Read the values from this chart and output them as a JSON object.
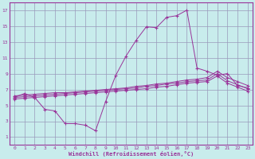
{
  "xlabel": "Windchill (Refroidissement éolien,°C)",
  "bg_color": "#c8ecec",
  "line_color": "#993399",
  "grid_color": "#9999bb",
  "xlim": [
    -0.5,
    23.5
  ],
  "ylim": [
    0,
    18
  ],
  "xticks": [
    0,
    1,
    2,
    3,
    4,
    5,
    6,
    7,
    8,
    9,
    10,
    11,
    12,
    13,
    14,
    15,
    16,
    17,
    18,
    19,
    20,
    21,
    22,
    23
  ],
  "yticks": [
    1,
    3,
    5,
    7,
    9,
    11,
    13,
    15,
    17
  ],
  "main_x": [
    0,
    1,
    2,
    3,
    4,
    5,
    6,
    7,
    8,
    9,
    10,
    11,
    12,
    13,
    14,
    15,
    16,
    17,
    18,
    19,
    20,
    21,
    22,
    23
  ],
  "main_y": [
    6.0,
    6.5,
    6.0,
    4.5,
    4.3,
    2.7,
    2.7,
    2.5,
    1.8,
    5.5,
    8.8,
    11.2,
    13.2,
    14.9,
    14.8,
    16.1,
    16.3,
    17.0,
    9.7,
    9.3,
    8.8,
    9.0,
    7.5,
    7.2
  ],
  "upper_x": [
    0,
    1,
    2,
    3,
    4,
    5,
    6,
    7,
    8,
    9,
    10,
    11,
    12,
    13,
    14,
    15,
    16,
    17,
    18,
    19,
    20,
    21,
    22,
    23
  ],
  "upper_y": [
    6.2,
    6.3,
    6.4,
    6.5,
    6.6,
    6.6,
    6.7,
    6.8,
    6.9,
    7.0,
    7.1,
    7.2,
    7.4,
    7.5,
    7.7,
    7.8,
    8.0,
    8.2,
    8.3,
    8.5,
    9.3,
    8.5,
    8.0,
    7.5
  ],
  "mid_x": [
    0,
    1,
    2,
    3,
    4,
    5,
    6,
    7,
    8,
    9,
    10,
    11,
    12,
    13,
    14,
    15,
    16,
    17,
    18,
    19,
    20,
    21,
    22,
    23
  ],
  "mid_y": [
    6.0,
    6.1,
    6.2,
    6.3,
    6.4,
    6.5,
    6.6,
    6.7,
    6.8,
    6.9,
    7.0,
    7.1,
    7.2,
    7.4,
    7.5,
    7.7,
    7.8,
    8.0,
    8.1,
    8.2,
    9.0,
    8.1,
    7.6,
    7.1
  ],
  "lower_x": [
    0,
    1,
    2,
    3,
    4,
    5,
    6,
    7,
    8,
    9,
    10,
    11,
    12,
    13,
    14,
    15,
    16,
    17,
    18,
    19,
    20,
    21,
    22,
    23
  ],
  "lower_y": [
    5.8,
    5.9,
    6.0,
    6.1,
    6.2,
    6.3,
    6.4,
    6.5,
    6.6,
    6.7,
    6.8,
    6.9,
    7.0,
    7.1,
    7.3,
    7.4,
    7.6,
    7.8,
    7.9,
    8.0,
    8.7,
    7.8,
    7.3,
    6.8
  ]
}
